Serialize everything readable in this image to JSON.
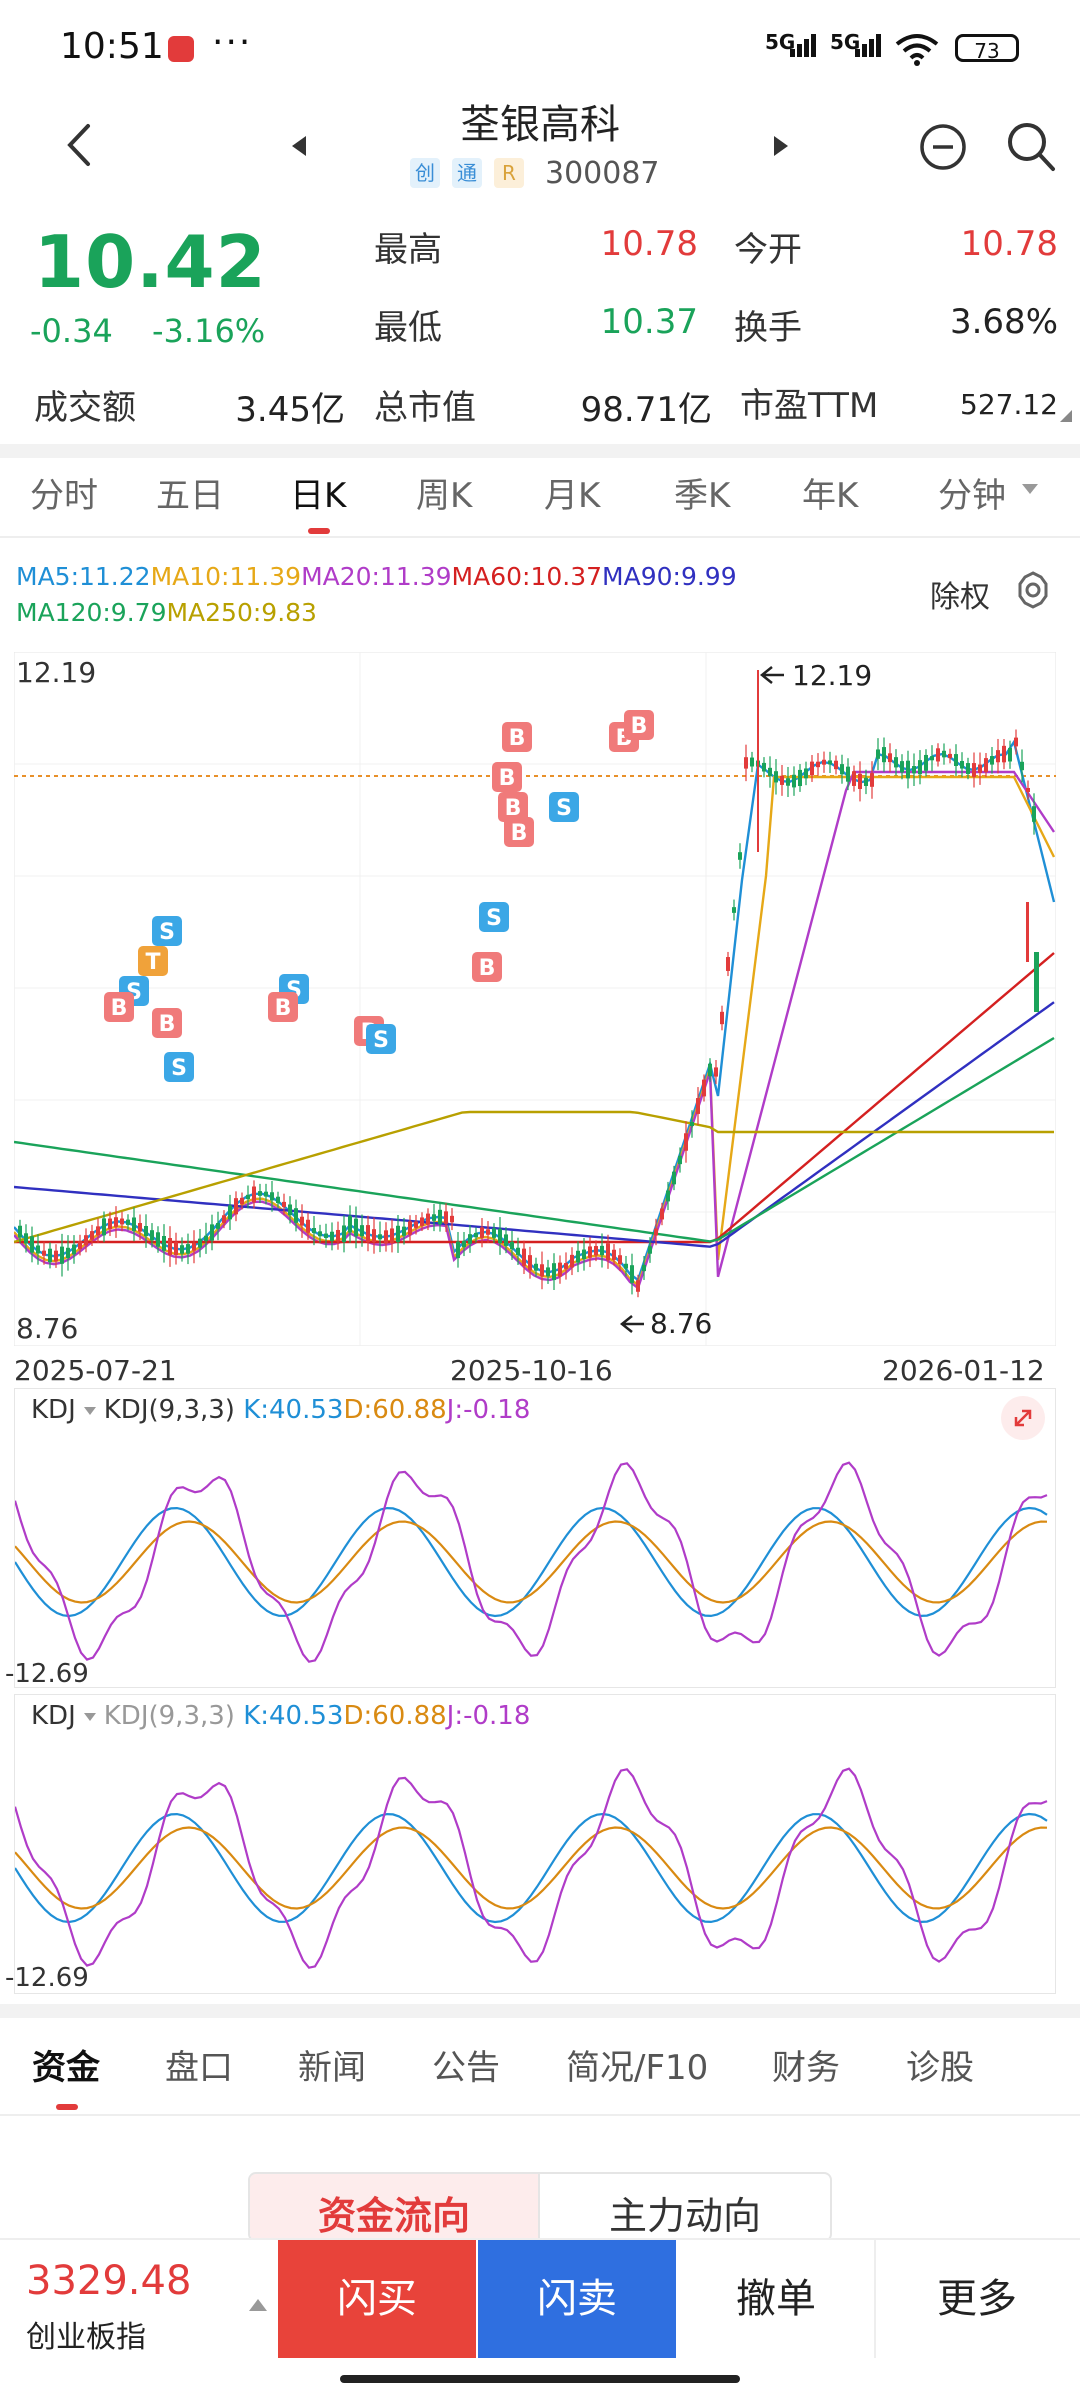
{
  "status_bar": {
    "time": "10:51",
    "more": "···",
    "net1": "5G",
    "net2": "5G",
    "battery": "73"
  },
  "header": {
    "stock_name": "荃银高科",
    "tags": [
      "创",
      "通",
      "R"
    ],
    "code": "300087"
  },
  "quote": {
    "price": "10.42",
    "change": "-0.34",
    "change_pct": "-3.16%",
    "fields": [
      {
        "label": "最高",
        "value": "10.78",
        "color": "#e23b3b"
      },
      {
        "label": "今开",
        "value": "10.78",
        "color": "#e23b3b"
      },
      {
        "label": "最低",
        "value": "10.37",
        "color": "#1aa35a"
      },
      {
        "label": "换手",
        "value": "3.68%",
        "color": "#222222"
      },
      {
        "label": "成交额",
        "value": "3.45亿",
        "color": "#222222"
      },
      {
        "label": "总市值",
        "value": "98.71亿",
        "color": "#222222"
      },
      {
        "label": "市盈TTM",
        "value": "527.12",
        "color": "#222222"
      }
    ]
  },
  "period_tabs": [
    "分时",
    "五日",
    "日K",
    "周K",
    "月K",
    "季K",
    "年K",
    "分钟"
  ],
  "active_period": "日K",
  "ma_legend": [
    {
      "text": "MA5:11.22",
      "color": "#1f8fd6"
    },
    {
      "text": "MA10:11.39",
      "color": "#e6a817"
    },
    {
      "text": "MA20:11.39",
      "color": "#b03cc8"
    },
    {
      "text": "MA60:10.37",
      "color": "#d42020"
    },
    {
      "text": "MA90:9.99",
      "color": "#3030c0"
    },
    {
      "text": "MA120:9.79",
      "color": "#1aa35a"
    },
    {
      "text": "MA250:9.83",
      "color": "#b8a000"
    }
  ],
  "fuquan_label": "除权",
  "chart": {
    "y_max_label": "12.19",
    "y_min_label": "8.76",
    "max_annotation": "12.19",
    "min_annotation": "8.76",
    "dates": [
      "2025-07-21",
      "2025-10-16",
      "2026-01-12"
    ],
    "up_color": "#e23b3b",
    "down_color": "#1aa35a",
    "signals": [
      "B",
      "S",
      "T"
    ]
  },
  "kdj": [
    {
      "name": "KDJ",
      "params": "KDJ(9,3,3)",
      "k": "K:40.53",
      "d": "D:60.88",
      "j": "J:-0.18",
      "min_label": "-12.69"
    },
    {
      "name": "KDJ",
      "params": "KDJ(9,3,3)",
      "k": "K:40.53",
      "d": "D:60.88",
      "j": "J:-0.18",
      "min_label": "-12.69"
    }
  ],
  "bottom_tabs": [
    "资金",
    "盘口",
    "新闻",
    "公告",
    "简况/F10",
    "财务",
    "诊股"
  ],
  "flow_segment": [
    "资金流向",
    "主力动向"
  ],
  "index": {
    "value": "3329.48",
    "name": "创业板指"
  },
  "actions": [
    "闪买",
    "闪卖",
    "撤单",
    "更多"
  ]
}
